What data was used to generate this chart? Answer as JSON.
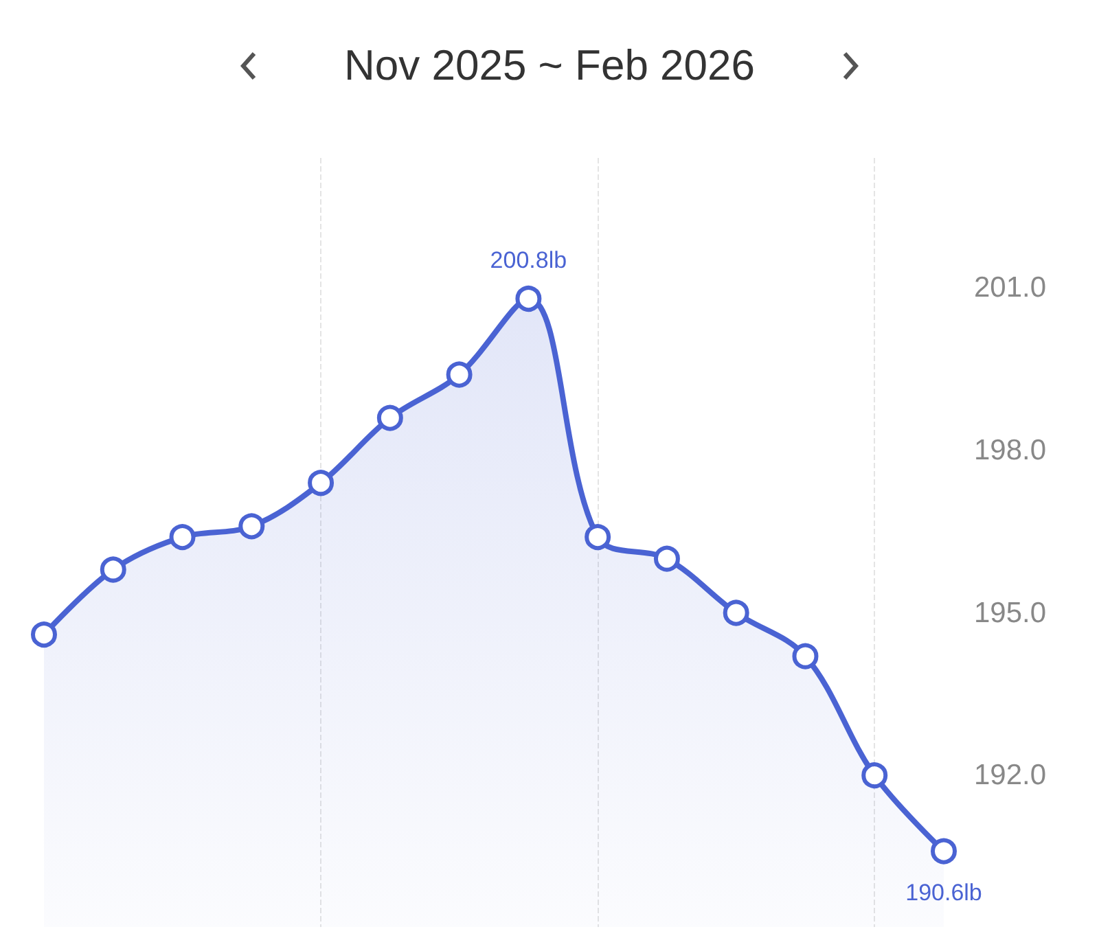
{
  "chart_data": {
    "type": "area",
    "title": "Nov 2025 ~ Feb 2026",
    "categories": [
      null,
      null,
      null,
      null,
      null,
      null,
      null,
      null,
      null,
      null,
      null,
      null,
      null,
      null
    ],
    "series": [
      {
        "color": "#4a63d3",
        "values": [
          194.6,
          195.8,
          196.4,
          196.6,
          197.4,
          198.6,
          199.4,
          200.8,
          196.4,
          196.0,
          195.0,
          194.2,
          192.0,
          190.6
        ],
        "value_labels": [
          null,
          null,
          null,
          null,
          null,
          null,
          null,
          "200.8lb",
          null,
          null,
          null,
          null,
          null,
          "190.6lb"
        ]
      }
    ],
    "ylim": [
      189.2,
      203.4
    ],
    "yticks": [
      {
        "value": 192,
        "label": "192.0"
      },
      {
        "value": 195,
        "label": "195.0"
      },
      {
        "value": 198,
        "label": "198.0"
      },
      {
        "value": 201,
        "label": "201.0"
      }
    ],
    "grid": "x",
    "marker": "circle",
    "line_style": "solid"
  }
}
